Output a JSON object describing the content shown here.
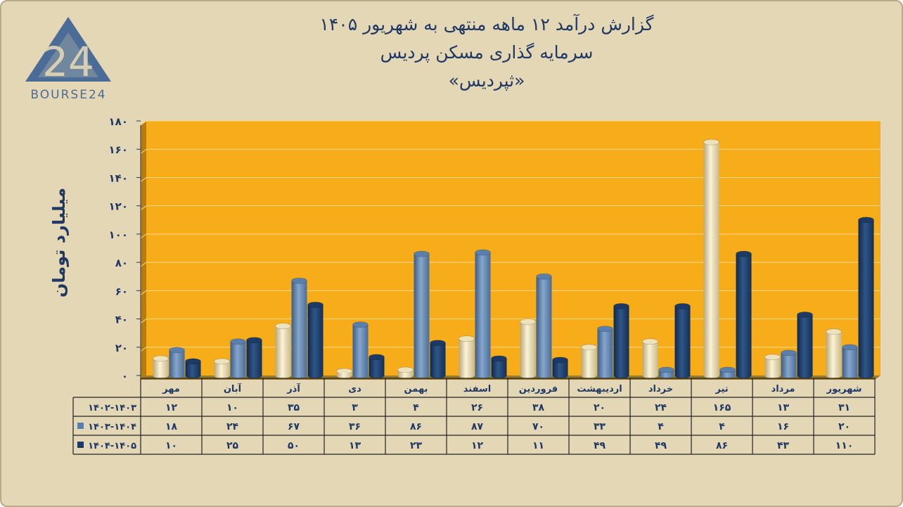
{
  "header": {
    "title": "گزارش  درآمد ۱۲ ماهه منتهی به شهریور ۱۴۰۵",
    "subtitle": "سرمایه گذاری مسکن پردیس",
    "symbol": "«ثپردیس»"
  },
  "logo": {
    "text": "BOURSE24",
    "mark": "24"
  },
  "chart_data": {
    "type": "bar",
    "ylabel": "میلیارد تومان",
    "ylim": [
      0,
      180
    ],
    "yticks": [
      "۰",
      "۲۰",
      "۴۰",
      "۶۰",
      "۸۰",
      "۱۰۰",
      "۱۲۰",
      "۱۴۰",
      "۱۶۰",
      "۱۸۰"
    ],
    "ytick_values": [
      0,
      20,
      40,
      60,
      80,
      100,
      120,
      140,
      160,
      180
    ],
    "grid": true,
    "categories": [
      "مهر",
      "آبان",
      "آذر",
      "دی",
      "بهمن",
      "اسفند",
      "فروردین",
      "اردیبهشت",
      "خرداد",
      "تیر",
      "مرداد",
      "شهریور"
    ],
    "series": [
      {
        "name": "۱۴۰۲-۱۴۰۳",
        "values": [
          12,
          10,
          35,
          3,
          4,
          26,
          38,
          20,
          24,
          165,
          13,
          31
        ],
        "labels": [
          "۱۲",
          "۱۰",
          "۳۵",
          "۳",
          "۴",
          "۲۶",
          "۳۸",
          "۲۰",
          "۲۴",
          "۱۶۵",
          "۱۳",
          "۳۱"
        ],
        "color": "#eee2bb"
      },
      {
        "name": "۱۴۰۳-۱۴۰۴",
        "values": [
          18,
          24,
          67,
          36,
          86,
          87,
          70,
          33,
          4,
          4,
          16,
          20
        ],
        "labels": [
          "۱۸",
          "۲۴",
          "۶۷",
          "۳۶",
          "۸۶",
          "۸۷",
          "۷۰",
          "۳۳",
          "۴",
          "۴",
          "۱۶",
          "۲۰"
        ],
        "color": "#5a7fab"
      },
      {
        "name": "۱۴۰۴-۱۴۰۵",
        "values": [
          10,
          25,
          50,
          13,
          23,
          12,
          11,
          49,
          49,
          86,
          43,
          110
        ],
        "labels": [
          "۱۰",
          "۲۵",
          "۵۰",
          "۱۳",
          "۲۳",
          "۱۲",
          "۱۱",
          "۴۹",
          "۴۹",
          "۸۶",
          "۴۳",
          "۱۱۰"
        ],
        "color": "#1c3a63"
      }
    ]
  },
  "colors": {
    "background": "#e3d7b6",
    "plot_area": "#f7ad19",
    "title": "#1f3864"
  }
}
